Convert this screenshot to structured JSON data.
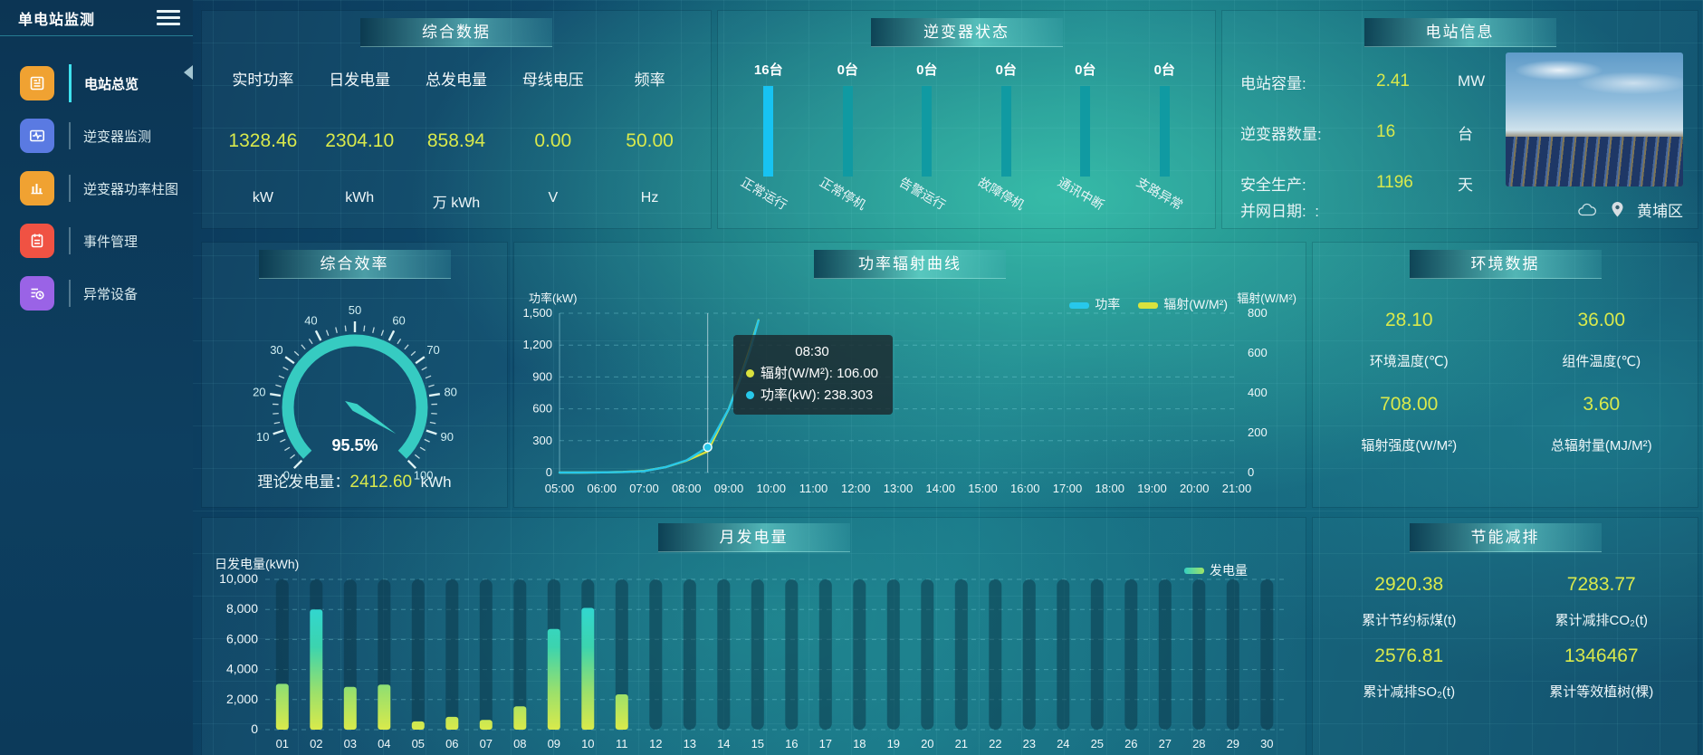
{
  "app": {
    "title": "单电站监测",
    "location": "黄埔区"
  },
  "sidebar": {
    "items": [
      {
        "label": "电站总览",
        "icon": "overview-icon",
        "color": "#f0a232",
        "active": true
      },
      {
        "label": "逆变器监测",
        "icon": "inverter-monitor-icon",
        "color": "#5a7ae2",
        "active": false
      },
      {
        "label": "逆变器功率柱图",
        "icon": "power-bars-icon",
        "color": "#f0a232",
        "active": false
      },
      {
        "label": "事件管理",
        "icon": "event-icon",
        "color": "#f05243",
        "active": false
      },
      {
        "label": "异常设备",
        "icon": "abnormal-device-icon",
        "color": "#9a63e6",
        "active": false
      }
    ]
  },
  "summary_panel": {
    "title": "综合数据",
    "metrics": [
      {
        "label": "实时功率",
        "value": "1328.46",
        "unit": "kW"
      },
      {
        "label": "日发电量",
        "value": "2304.10",
        "unit": "kWh"
      },
      {
        "label": "总发电量",
        "value": "858.94",
        "unit": "万 kWh"
      },
      {
        "label": "母线电压",
        "value": "0.00",
        "unit": "V"
      },
      {
        "label": "频率",
        "value": "50.00",
        "unit": "Hz"
      }
    ]
  },
  "inverter_panel": {
    "title": "逆变器状态",
    "items": [
      {
        "count": "16台",
        "label": "正常运行",
        "color": "#17c3f2"
      },
      {
        "count": "0台",
        "label": "正常停机",
        "color": "#109aa2"
      },
      {
        "count": "0台",
        "label": "告警运行",
        "color": "#109aa2"
      },
      {
        "count": "0台",
        "label": "故障停机",
        "color": "#109aa2"
      },
      {
        "count": "0台",
        "label": "通讯中断",
        "color": "#109aa2"
      },
      {
        "count": "0台",
        "label": "支路异常",
        "color": "#109aa2"
      }
    ]
  },
  "station_panel": {
    "title": "电站信息",
    "rows": [
      {
        "label": "电站容量:",
        "value": "2.41",
        "unit": "MW"
      },
      {
        "label": "逆变器数量:",
        "value": "16",
        "unit": "台"
      },
      {
        "label": "安全生产:",
        "value": "1196",
        "unit": "天"
      }
    ],
    "grid_date_label": "并网日期:",
    "grid_date_value": ":"
  },
  "efficiency_panel": {
    "theory_label": "理论发电量：",
    "theory_value": "2412.60",
    "theory_unit": "kWh"
  },
  "env_panel": {
    "title": "环境数据",
    "stats": [
      {
        "value": "28.10",
        "label": "环境温度(℃)"
      },
      {
        "value": "36.00",
        "label": "组件温度(℃)"
      },
      {
        "value": "708.00",
        "label": "辐射强度(W/M²)"
      },
      {
        "value": "3.60",
        "label": "总辐射量(MJ/M²)"
      }
    ]
  },
  "saving_panel": {
    "title": "节能减排",
    "stats": [
      {
        "value": "2920.38",
        "label": "累计节约标煤(t)"
      },
      {
        "value": "7283.77",
        "label": "累计减排CO₂(t)"
      },
      {
        "value": "2576.81",
        "label": "累计减排SO₂(t)"
      },
      {
        "value": "1346467",
        "label": "累计等效植树(棵)"
      }
    ]
  },
  "chart_data": [
    {
      "id": "efficiency_gauge",
      "type": "gauge",
      "title": "综合效率",
      "min": 0,
      "max": 100,
      "value": 95.5,
      "value_label": "95.5%",
      "tick_step": 10,
      "color": "#38d2c6"
    },
    {
      "id": "power_radiation",
      "type": "line",
      "title": "功率辐射曲线",
      "ylabel_left": "功率(kW)",
      "ylabel_right": "辐射(W/M²)",
      "ylim_left": [
        0,
        1500
      ],
      "ylim_right": [
        0,
        800
      ],
      "yticks_left": [
        "0",
        "300",
        "600",
        "900",
        "1,200",
        "1,500"
      ],
      "yticks_right": [
        "0",
        "200",
        "400",
        "600",
        "800"
      ],
      "x_labels": [
        "05:00",
        "06:00",
        "07:00",
        "08:00",
        "09:00",
        "10:00",
        "11:00",
        "12:00",
        "13:00",
        "14:00",
        "15:00",
        "16:00",
        "17:00",
        "18:00",
        "19:00",
        "20:00",
        "21:00"
      ],
      "series": [
        {
          "name": "功率",
          "color": "#27c8ea",
          "axis": "left",
          "points": [
            [
              5,
              0
            ],
            [
              5.5,
              0
            ],
            [
              6,
              2
            ],
            [
              6.5,
              5
            ],
            [
              7,
              14
            ],
            [
              7.5,
              50
            ],
            [
              8,
              115
            ],
            [
              8.5,
              238.303
            ],
            [
              9,
              600
            ],
            [
              9.25,
              860
            ],
            [
              9.5,
              1150
            ],
            [
              9.7,
              1430
            ]
          ]
        },
        {
          "name": "辐射(W/M²)",
          "color": "#d9e23e",
          "axis": "right",
          "points": [
            [
              5,
              0
            ],
            [
              5.5,
              0
            ],
            [
              6,
              1
            ],
            [
              6.5,
              3
            ],
            [
              7,
              8
            ],
            [
              7.5,
              27
            ],
            [
              8,
              60
            ],
            [
              8.5,
              106
            ],
            [
              9,
              320
            ],
            [
              9.25,
              465
            ],
            [
              9.5,
              625
            ],
            [
              9.7,
              765
            ]
          ]
        }
      ],
      "tooltip": {
        "time": "08:30",
        "items": [
          {
            "color": "#d9e23e",
            "text": "辐射(W/M²): 106.00"
          },
          {
            "color": "#27c8ea",
            "text": "功率(kW): 238.303"
          }
        ],
        "marker_x": 8.5,
        "marker_value": 238.303
      }
    },
    {
      "id": "monthly_energy",
      "type": "bar",
      "title": "月发电量",
      "ylabel": "日发电量(kWh)",
      "ylim": [
        0,
        10000
      ],
      "yticks": [
        "0",
        "2,000",
        "4,000",
        "6,000",
        "8,000",
        "10,000"
      ],
      "legend": "发电量",
      "categories": [
        "01",
        "02",
        "03",
        "04",
        "05",
        "06",
        "07",
        "08",
        "09",
        "10",
        "11",
        "12",
        "13",
        "14",
        "15",
        "16",
        "17",
        "18",
        "19",
        "20",
        "21",
        "22",
        "23",
        "24",
        "25",
        "26",
        "27",
        "28",
        "29",
        "30"
      ],
      "values": [
        3050,
        8000,
        2850,
        3000,
        550,
        850,
        650,
        1550,
        6700,
        8100,
        2350,
        0,
        0,
        0,
        0,
        0,
        0,
        0,
        0,
        0,
        0,
        0,
        0,
        0,
        0,
        0,
        0,
        0,
        0,
        0
      ]
    }
  ]
}
